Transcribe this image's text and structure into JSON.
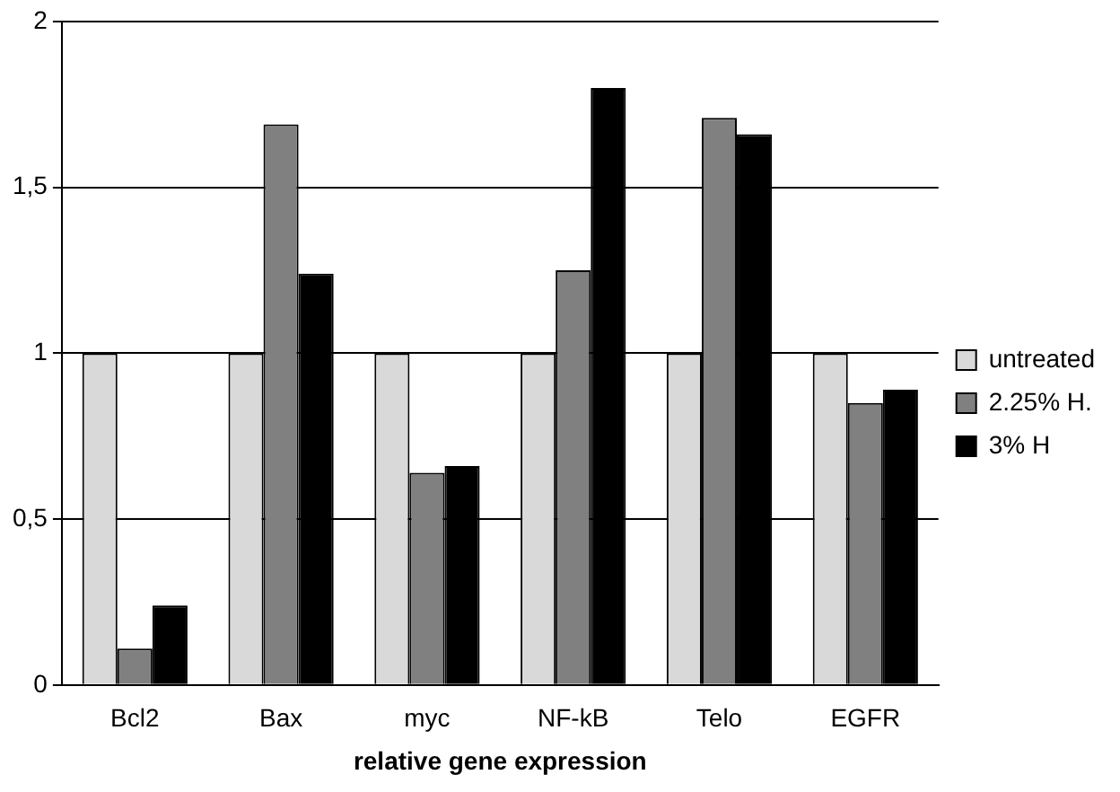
{
  "chart_data": {
    "type": "bar",
    "xlabel": "relative gene expression",
    "categories": [
      "Bcl2",
      "Bax",
      "myc",
      "NF-kB",
      "Telo",
      "EGFR"
    ],
    "series": [
      {
        "name": "untreated",
        "color": "#d9d9d9",
        "values": [
          1,
          1,
          1,
          1,
          1,
          1
        ]
      },
      {
        "name": "2.25% H.",
        "color": "#808080",
        "values": [
          0.11,
          1.69,
          0.64,
          1.25,
          1.71,
          0.85
        ]
      },
      {
        "name": "3% H",
        "color": "#000000",
        "values": [
          0.24,
          1.24,
          0.66,
          1.8,
          1.66,
          0.89
        ]
      }
    ],
    "ylim": [
      0,
      2
    ],
    "yticks": [
      0,
      {
        "value": 0.5,
        "label": "0,5"
      },
      1,
      {
        "value": 1.5,
        "label": "1,5"
      },
      2
    ],
    "grid": "y",
    "legend": "right"
  }
}
